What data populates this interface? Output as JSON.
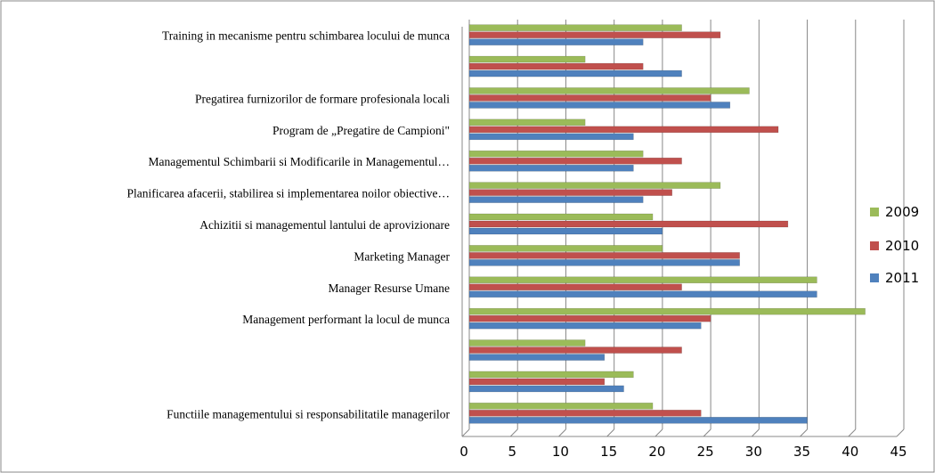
{
  "chart_data": {
    "type": "bar",
    "orientation": "horizontal",
    "categories": [
      "Training in mecanisme pentru schimbarea locului de munca",
      null,
      "Pregatirea furnizorilor de formare profesionala locali",
      "Program de „Pregatire de Campioni\"",
      "Managementul Schimbarii si Modificarile in Managementul…",
      "Planificarea afacerii, stabilirea si implementarea noilor obiective…",
      "Achizitii si managementul lantului de aprovizionare",
      "Marketing Manager",
      "Manager Resurse Umane",
      "Management performant la locul de munca",
      null,
      null,
      "Functiile managementului si responsabilitatile managerilor"
    ],
    "series": [
      {
        "name": "2009",
        "color": "#9bbb59",
        "values": [
          22,
          12,
          29,
          12,
          18,
          26,
          19,
          20,
          36,
          41,
          12,
          17,
          19
        ]
      },
      {
        "name": "2010",
        "color": "#c0504d",
        "values": [
          26,
          18,
          25,
          32,
          22,
          21,
          33,
          28,
          22,
          25,
          22,
          14,
          24
        ]
      },
      {
        "name": "2011",
        "color": "#4f81bd",
        "values": [
          18,
          22,
          27,
          17,
          17,
          18,
          20,
          28,
          36,
          24,
          14,
          16,
          35
        ]
      }
    ],
    "xlim": [
      0,
      45
    ],
    "xticks": [
      0,
      5,
      10,
      15,
      20,
      25,
      30,
      35,
      40,
      45
    ],
    "grid": true,
    "legend": "right"
  }
}
